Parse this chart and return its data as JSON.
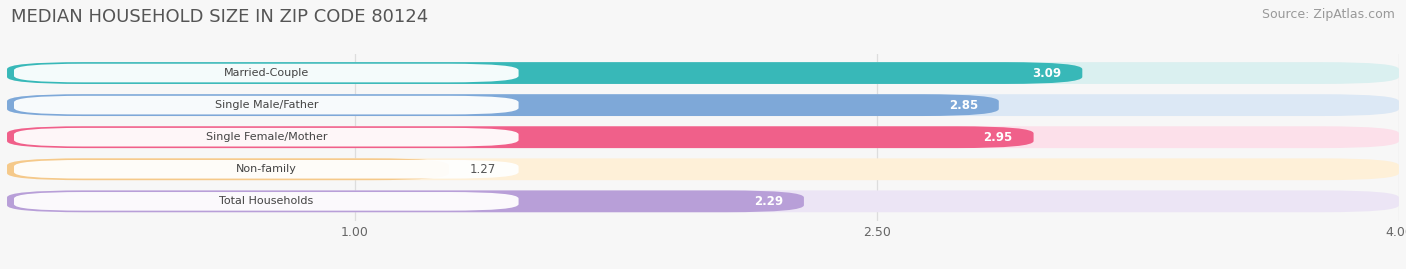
{
  "title": "MEDIAN HOUSEHOLD SIZE IN ZIP CODE 80124",
  "source": "Source: ZipAtlas.com",
  "categories": [
    "Married-Couple",
    "Single Male/Father",
    "Single Female/Mother",
    "Non-family",
    "Total Households"
  ],
  "values": [
    3.09,
    2.85,
    2.95,
    1.27,
    2.29
  ],
  "bar_colors": [
    "#38b8b8",
    "#7ea8d8",
    "#f0608a",
    "#f5c98a",
    "#b89fd8"
  ],
  "bar_bg_colors": [
    "#daf0f0",
    "#dce8f5",
    "#fce0ea",
    "#fef0d8",
    "#ece5f5"
  ],
  "value_label_colors": [
    "#ffffff",
    "#ffffff",
    "#ffffff",
    "#555555",
    "#555555"
  ],
  "xmin": 0.0,
  "xmax": 4.0,
  "xticks": [
    1.0,
    2.5,
    4.0
  ],
  "title_fontsize": 13,
  "source_fontsize": 9,
  "bar_fontsize": 8.5,
  "label_fontsize": 8,
  "background_color": "#f7f7f7"
}
